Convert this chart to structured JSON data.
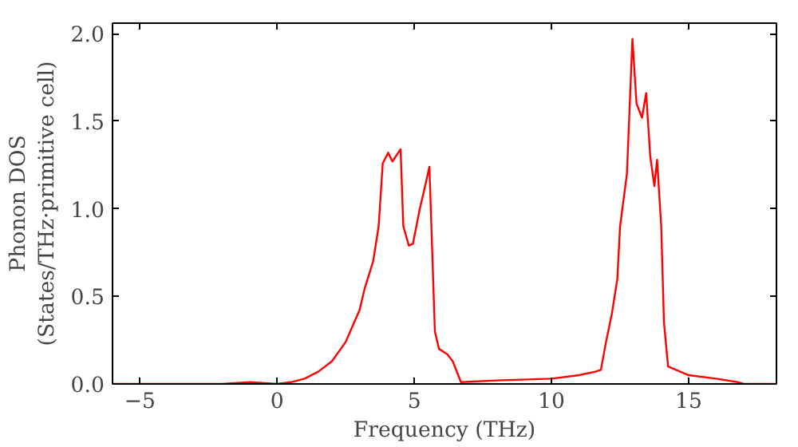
{
  "chart_data": {
    "type": "line",
    "xlabel": "Frequency (THz)",
    "ylabel": "Phonon DOS\n(States/THz·primitive cell)",
    "xlim": [
      -6,
      18.2
    ],
    "ylim": [
      0,
      2.06
    ],
    "xticks": [
      -5,
      0,
      5,
      10,
      15
    ],
    "yticks": [
      {
        "value": 0,
        "label": "0.0"
      },
      0.5,
      {
        "value": 1,
        "label": "1.0"
      },
      1.5,
      {
        "value": 2,
        "label": "2.0"
      }
    ],
    "grid": false,
    "series": [
      {
        "color": "#ff0000",
        "x": [
          -6,
          -2,
          -1,
          0,
          0.5,
          1,
          1.5,
          2,
          2.5,
          3,
          3.2,
          3.5,
          3.7,
          3.85,
          4.05,
          4.2,
          4.5,
          4.6,
          4.8,
          4.95,
          5.2,
          5.35,
          5.55,
          5.75,
          5.9,
          6.2,
          6.4,
          6.7,
          8,
          10,
          11,
          11.6,
          11.8,
          12.0,
          12.2,
          12.4,
          12.5,
          12.75,
          12.95,
          13.1,
          13.3,
          13.45,
          13.6,
          13.75,
          13.85,
          14.0,
          14.1,
          14.25,
          15,
          16,
          16.8,
          17.0,
          18.2
        ],
        "values": [
          0,
          0,
          0.01,
          0,
          0.01,
          0.03,
          0.07,
          0.13,
          0.24,
          0.42,
          0.55,
          0.7,
          0.9,
          1.26,
          1.32,
          1.27,
          1.34,
          0.9,
          0.79,
          0.8,
          1.0,
          1.1,
          1.24,
          0.3,
          0.2,
          0.17,
          0.13,
          0.01,
          0.02,
          0.03,
          0.05,
          0.07,
          0.08,
          0.25,
          0.4,
          0.6,
          0.9,
          1.2,
          1.97,
          1.6,
          1.52,
          1.66,
          1.3,
          1.13,
          1.28,
          0.9,
          0.35,
          0.1,
          0.05,
          0.03,
          0.01,
          0.0,
          0.0
        ]
      }
    ]
  }
}
